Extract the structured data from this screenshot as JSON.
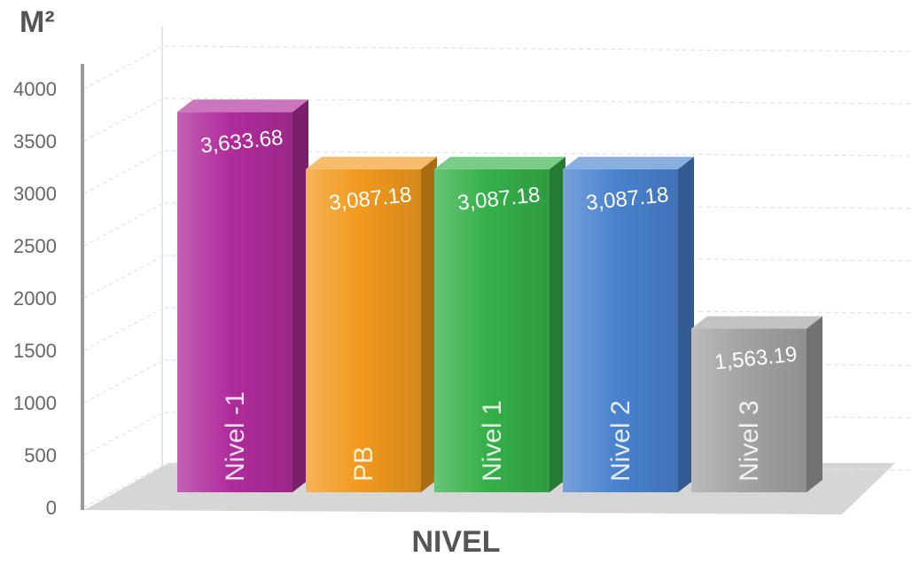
{
  "chart_data": {
    "type": "bar",
    "title": "",
    "ylabel": "M²",
    "xlabel": "NIVEL",
    "ylim": [
      0,
      4000
    ],
    "yticks": [
      0,
      500,
      1000,
      1500,
      2000,
      2500,
      3000,
      3500,
      4000
    ],
    "categories": [
      "Nivel -1",
      "PB",
      "Nivel 1",
      "Nivel 2",
      "Nivel 3"
    ],
    "values": [
      3633.68,
      3087.18,
      3087.18,
      3087.18,
      1563.19
    ],
    "value_labels": [
      "3,633.68",
      "3,087.18",
      "3,087.18",
      "3,087.18",
      "1,563.19"
    ],
    "colors": [
      "#b02c9c",
      "#f29a1e",
      "#35b04a",
      "#4a82cf",
      "#a3a3a3"
    ],
    "grid": true,
    "legend": "none"
  }
}
